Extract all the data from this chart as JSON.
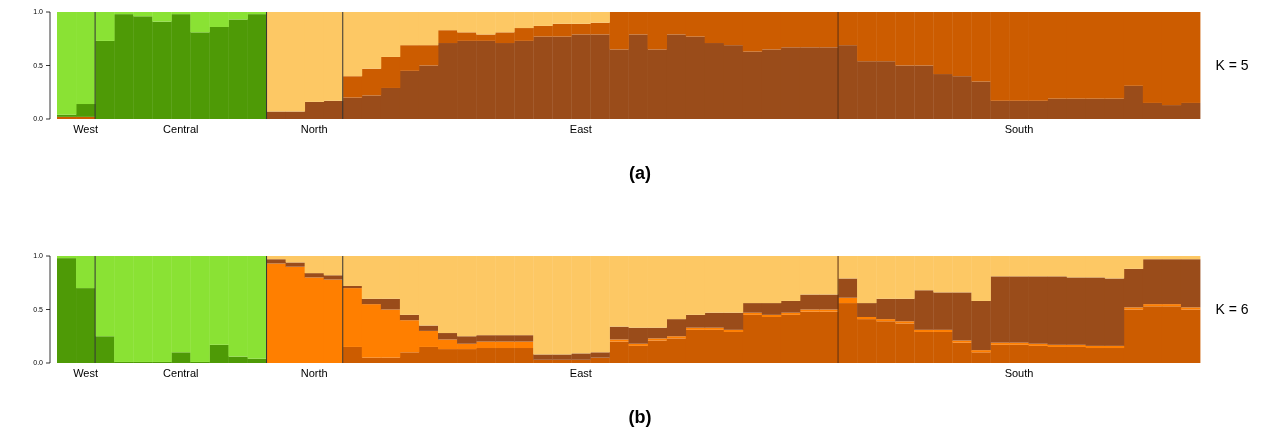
{
  "chart_data": [
    {
      "type": "bar",
      "stacked": true,
      "categories": [
        null,
        "West",
        null,
        null,
        null,
        null,
        "Central",
        null,
        null,
        null,
        null,
        null,
        null,
        "North",
        null,
        null,
        null,
        null,
        null,
        null,
        null,
        null,
        null,
        null,
        null,
        null,
        null,
        "East",
        null,
        null,
        null,
        null,
        null,
        null,
        null,
        null,
        null,
        null,
        null,
        null,
        null,
        null,
        null,
        null,
        null,
        null,
        null,
        null,
        null,
        null,
        "South",
        null,
        null,
        null,
        null,
        null,
        null,
        null,
        null,
        null
      ],
      "ylim": [
        0,
        1
      ],
      "yticks": [
        {
          "value": 0,
          "label": "0.0"
        },
        {
          "value": 0.5,
          "label": "0.5"
        },
        {
          "value": 1,
          "label": "1.0"
        }
      ],
      "annotations": [
        "K = 5",
        "(a)"
      ],
      "series": [
        {
          "color": "#9a4c1a",
          "values": [
            0,
            0,
            0,
            0,
            0,
            0,
            0,
            0,
            0,
            0,
            0,
            0.07,
            0.07,
            0.16,
            0.17,
            0.2,
            0.22,
            0.29,
            0.45,
            0.5,
            0.71,
            0.73,
            0.73,
            0.71,
            0.73,
            0.77,
            0.77,
            0.79,
            0.79,
            0.65,
            0.79,
            0.65,
            0.79,
            0.77,
            0.71,
            0.69,
            0.63,
            0.65,
            0.67,
            0.67,
            0.67,
            0.69,
            0.54,
            0.54,
            0.5,
            0.5,
            0.42,
            0.4,
            0.35,
            0.17,
            0.17,
            0.17,
            0.19,
            0.19,
            0.19,
            0.19,
            0.31,
            0.15,
            0.13,
            0.15
          ]
        },
        {
          "color": "#cc5c00",
          "values": [
            0.02,
            0.02,
            0,
            0,
            0,
            0,
            0,
            0,
            0,
            0,
            0,
            0,
            0,
            0,
            0,
            0.2,
            0.25,
            0.29,
            0.24,
            0.19,
            0.12,
            0.08,
            0.06,
            0.1,
            0.12,
            0.1,
            0.12,
            0.1,
            0.11,
            0.35,
            0.21,
            0.35,
            0.21,
            0.23,
            0.29,
            0.31,
            0.37,
            0.35,
            0.33,
            0.33,
            0.33,
            0.31,
            0.46,
            0.46,
            0.5,
            0.5,
            0.58,
            0.6,
            0.65,
            0.83,
            0.83,
            0.83,
            0.81,
            0.81,
            0.81,
            0.81,
            0.69,
            0.85,
            0.87,
            0.85
          ]
        },
        {
          "color": "#4e9a06",
          "values": [
            0.02,
            0.12,
            0.73,
            0.98,
            0.96,
            0.91,
            0.98,
            0.81,
            0.86,
            0.93,
            0.98,
            0,
            0,
            0,
            0,
            0,
            0,
            0,
            0,
            0,
            0,
            0,
            0,
            0,
            0,
            0,
            0,
            0,
            0,
            0,
            0,
            0,
            0,
            0,
            0,
            0,
            0,
            0,
            0,
            0,
            0,
            0,
            0,
            0,
            0,
            0,
            0,
            0,
            0,
            0,
            0,
            0,
            0,
            0,
            0,
            0,
            0,
            0,
            0,
            0
          ]
        },
        {
          "color": "#8ae234",
          "values": [
            0.96,
            0.86,
            0.27,
            0.02,
            0.04,
            0.09,
            0.02,
            0.19,
            0.14,
            0.07,
            0.02,
            0,
            0,
            0,
            0,
            0,
            0,
            0,
            0,
            0,
            0,
            0,
            0,
            0,
            0,
            0,
            0,
            0,
            0,
            0,
            0,
            0,
            0,
            0,
            0,
            0,
            0,
            0,
            0,
            0,
            0,
            0,
            0,
            0,
            0,
            0,
            0,
            0,
            0,
            0,
            0,
            0,
            0,
            0,
            0,
            0,
            0,
            0,
            0,
            0
          ]
        },
        {
          "color": "#fdc864",
          "values": [
            0,
            0,
            0,
            0,
            0,
            0,
            0,
            0,
            0,
            0,
            0,
            0.93,
            0.93,
            0.84,
            0.83,
            0.6,
            0.53,
            0.42,
            0.31,
            0.31,
            0.17,
            0.19,
            0.21,
            0.19,
            0.15,
            0.13,
            0.11,
            0.11,
            0.1,
            0,
            0,
            0,
            0,
            0,
            0,
            0,
            0,
            0,
            0,
            0,
            0,
            0,
            0,
            0,
            0,
            0,
            0,
            0,
            0,
            0,
            0,
            0,
            0,
            0,
            0,
            0,
            0,
            0,
            0,
            0
          ]
        }
      ]
    },
    {
      "type": "bar",
      "stacked": true,
      "categories": [
        null,
        "West",
        null,
        null,
        null,
        null,
        "Central",
        null,
        null,
        null,
        null,
        null,
        null,
        "North",
        null,
        null,
        null,
        null,
        null,
        null,
        null,
        null,
        null,
        null,
        null,
        null,
        null,
        "East",
        null,
        null,
        null,
        null,
        null,
        null,
        null,
        null,
        null,
        null,
        null,
        null,
        null,
        null,
        null,
        null,
        null,
        null,
        null,
        null,
        null,
        null,
        "South",
        null,
        null,
        null,
        null,
        null,
        null,
        null,
        null,
        null
      ],
      "ylim": [
        0,
        1
      ],
      "yticks": [
        {
          "value": 0,
          "label": "0.0"
        },
        {
          "value": 0.5,
          "label": "0.5"
        },
        {
          "value": 1,
          "label": "1.0"
        }
      ],
      "annotations": [
        "K = 6",
        "(b)"
      ],
      "series": [
        {
          "color": "#cc5c00",
          "values": [
            0,
            0,
            0,
            0,
            0,
            0,
            0,
            0,
            0,
            0,
            0,
            0,
            0,
            0,
            0,
            0.15,
            0.05,
            0.05,
            0.1,
            0.15,
            0.13,
            0.13,
            0.14,
            0.14,
            0.14,
            0.03,
            0.03,
            0.03,
            0.05,
            0.2,
            0.16,
            0.21,
            0.23,
            0.31,
            0.31,
            0.29,
            0.45,
            0.43,
            0.45,
            0.48,
            0.48,
            0.56,
            0.41,
            0.39,
            0.37,
            0.29,
            0.29,
            0.19,
            0.1,
            0.17,
            0.17,
            0.16,
            0.15,
            0.15,
            0.14,
            0.14,
            0.5,
            0.53,
            0.53,
            0.5
          ]
        },
        {
          "color": "#ff7f00",
          "values": [
            0,
            0,
            0,
            0,
            0,
            0,
            0,
            0,
            0,
            0,
            0,
            0.93,
            0.9,
            0.8,
            0.78,
            0.55,
            0.5,
            0.45,
            0.3,
            0.15,
            0.09,
            0.05,
            0.06,
            0.06,
            0.06,
            0,
            0,
            0,
            0,
            0.02,
            0.02,
            0.02,
            0.02,
            0.02,
            0.02,
            0.02,
            0.02,
            0.02,
            0.02,
            0.02,
            0.02,
            0.05,
            0.02,
            0.02,
            0.02,
            0.02,
            0.02,
            0.02,
            0.02,
            0.02,
            0.02,
            0.02,
            0.02,
            0.02,
            0.02,
            0.02,
            0.02,
            0.02,
            0.02,
            0.02
          ]
        },
        {
          "color": "#9a4c1a",
          "values": [
            0,
            0,
            0,
            0,
            0,
            0,
            0,
            0,
            0,
            0,
            0,
            0.04,
            0.04,
            0.04,
            0.04,
            0.02,
            0.05,
            0.1,
            0.05,
            0.05,
            0.06,
            0.07,
            0.06,
            0.06,
            0.06,
            0.05,
            0.05,
            0.06,
            0.05,
            0.12,
            0.15,
            0.1,
            0.16,
            0.12,
            0.14,
            0.16,
            0.09,
            0.11,
            0.11,
            0.14,
            0.14,
            0.18,
            0.13,
            0.19,
            0.21,
            0.37,
            0.35,
            0.45,
            0.46,
            0.62,
            0.62,
            0.63,
            0.64,
            0.63,
            0.64,
            0.63,
            0.36,
            0.42,
            0.42,
            0.45
          ]
        },
        {
          "color": "#4e9a06",
          "values": [
            0.98,
            0.7,
            0.25,
            0.01,
            0.01,
            0.01,
            0.1,
            0.01,
            0.17,
            0.06,
            0.04,
            0,
            0,
            0,
            0,
            0,
            0,
            0,
            0,
            0,
            0,
            0,
            0,
            0,
            0,
            0,
            0,
            0,
            0,
            0,
            0,
            0,
            0,
            0,
            0,
            0,
            0,
            0,
            0,
            0,
            0,
            0,
            0,
            0,
            0,
            0,
            0,
            0,
            0,
            0,
            0,
            0,
            0,
            0,
            0,
            0,
            0,
            0,
            0,
            0
          ]
        },
        {
          "color": "#8ae234",
          "values": [
            0.02,
            0.3,
            0.75,
            0.99,
            0.99,
            0.99,
            0.9,
            0.99,
            0.83,
            0.94,
            0.96,
            0,
            0,
            0,
            0,
            0,
            0,
            0,
            0,
            0,
            0,
            0,
            0,
            0,
            0,
            0,
            0,
            0,
            0,
            0,
            0,
            0,
            0,
            0,
            0,
            0,
            0,
            0,
            0,
            0,
            0,
            0,
            0,
            0,
            0,
            0,
            0,
            0,
            0,
            0,
            0,
            0,
            0,
            0,
            0,
            0,
            0,
            0,
            0,
            0
          ]
        },
        {
          "color": "#fdc864",
          "values": [
            0,
            0,
            0,
            0,
            0,
            0,
            0,
            0,
            0,
            0,
            0,
            0.03,
            0.06,
            0.16,
            0.18,
            0.28,
            0.4,
            0.4,
            0.55,
            0.65,
            0.72,
            0.75,
            0.74,
            0.74,
            0.74,
            0.92,
            0.92,
            0.91,
            0.9,
            0.66,
            0.67,
            0.67,
            0.59,
            0.55,
            0.53,
            0.53,
            0.44,
            0.44,
            0.42,
            0.36,
            0.36,
            0.21,
            0.44,
            0.4,
            0.4,
            0.32,
            0.34,
            0.34,
            0.42,
            0.19,
            0.19,
            0.19,
            0.19,
            0.2,
            0.2,
            0.21,
            0.12,
            0.03,
            0.03,
            0.03
          ]
        }
      ]
    }
  ]
}
